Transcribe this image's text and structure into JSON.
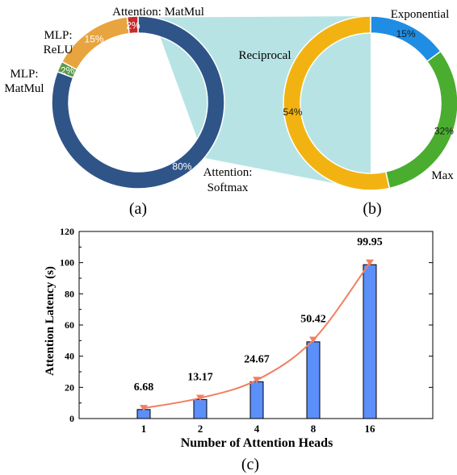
{
  "chart_data": [
    {
      "id": "a",
      "type": "pie",
      "panel_label": "(a)",
      "slices": [
        {
          "label_lines": [
            "Attention:",
            "Softmax"
          ],
          "value": 80,
          "value_label": "80%",
          "color": "#2f5488"
        },
        {
          "label_lines": [
            "MLP:",
            "MatMul"
          ],
          "value": 2,
          "value_label": "2%",
          "color": "#5d9a4b"
        },
        {
          "label_lines": [
            "MLP:",
            "ReLU"
          ],
          "value": 15,
          "value_label": "15%",
          "color": "#e8a43f"
        },
        {
          "label_lines": [
            "Attention: MatMul"
          ],
          "value": 2,
          "value_label": "2%",
          "color": "#c62b2b"
        }
      ]
    },
    {
      "id": "b",
      "type": "pie",
      "panel_label": "(b)",
      "slices": [
        {
          "label_lines": [
            "Exponential"
          ],
          "value": 15,
          "value_label": "15%",
          "color": "#1f8de3"
        },
        {
          "label_lines": [
            "Max"
          ],
          "value": 32,
          "value_label": "32%",
          "color": "#4aad2f"
        },
        {
          "label_lines": [
            "Reciprocal"
          ],
          "value": 54,
          "value_label": "54%",
          "color": "#f2b312"
        }
      ]
    },
    {
      "id": "c",
      "type": "bar",
      "panel_label": "(c)",
      "categories": [
        "1",
        "2",
        "4",
        "8",
        "16"
      ],
      "values": [
        5.8,
        12.2,
        23.6,
        49.2,
        98.7
      ],
      "line_values": [
        6.68,
        13.17,
        24.67,
        50.42,
        99.95
      ],
      "data_labels": [
        "6.68",
        "13.17",
        "24.67",
        "50.42",
        "99.95"
      ],
      "xlabel": "Number of Attention Heads",
      "ylabel": "Attention Latency (s)",
      "ylim": [
        0,
        120
      ],
      "yticks": [
        "0",
        "20",
        "40",
        "60",
        "80",
        "100",
        "120"
      ],
      "bar_color": "#5b8ff9",
      "line_color": "#f08060"
    }
  ]
}
